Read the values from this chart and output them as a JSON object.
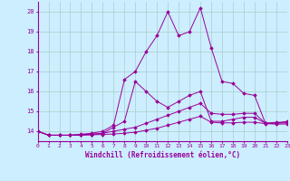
{
  "xlabel": "Windchill (Refroidissement éolien,°C)",
  "xlim": [
    0,
    23
  ],
  "ylim": [
    13.5,
    20.5
  ],
  "yticks": [
    14,
    15,
    16,
    17,
    18,
    19,
    20
  ],
  "xticks": [
    0,
    1,
    2,
    3,
    4,
    5,
    6,
    7,
    8,
    9,
    10,
    11,
    12,
    13,
    14,
    15,
    16,
    17,
    18,
    19,
    20,
    21,
    22,
    23
  ],
  "background_color": "#cceeff",
  "line_color": "#990099",
  "grid_color": "#aacccc",
  "lines": [
    {
      "x": [
        0,
        1,
        2,
        3,
        4,
        5,
        6,
        7,
        8,
        9,
        10,
        11,
        12,
        13,
        14,
        15,
        16,
        17,
        18,
        19,
        20,
        21,
        22,
        23
      ],
      "y": [
        14.0,
        13.8,
        13.8,
        13.8,
        13.85,
        13.9,
        14.0,
        14.3,
        16.6,
        17.0,
        18.0,
        18.8,
        20.0,
        18.8,
        19.0,
        20.2,
        18.2,
        16.5,
        16.4,
        15.9,
        15.8,
        14.4,
        14.4,
        14.5
      ]
    },
    {
      "x": [
        0,
        1,
        2,
        3,
        4,
        5,
        6,
        7,
        8,
        9,
        10,
        11,
        12,
        13,
        14,
        15,
        16,
        17,
        18,
        19,
        20,
        21,
        22,
        23
      ],
      "y": [
        14.0,
        13.8,
        13.8,
        13.8,
        13.82,
        13.84,
        13.9,
        14.2,
        14.5,
        16.5,
        16.0,
        15.5,
        15.2,
        15.5,
        15.8,
        16.0,
        14.5,
        14.5,
        14.6,
        14.7,
        14.7,
        14.4,
        14.45,
        14.45
      ]
    },
    {
      "x": [
        0,
        1,
        2,
        3,
        4,
        5,
        6,
        7,
        8,
        9,
        10,
        11,
        12,
        13,
        14,
        15,
        16,
        17,
        18,
        19,
        20,
        21,
        22,
        23
      ],
      "y": [
        14.0,
        13.8,
        13.8,
        13.8,
        13.82,
        13.85,
        13.9,
        14.0,
        14.1,
        14.2,
        14.4,
        14.6,
        14.8,
        15.0,
        15.2,
        15.4,
        14.9,
        14.85,
        14.85,
        14.9,
        14.9,
        14.4,
        14.4,
        14.42
      ]
    },
    {
      "x": [
        0,
        1,
        2,
        3,
        4,
        5,
        6,
        7,
        8,
        9,
        10,
        11,
        12,
        13,
        14,
        15,
        16,
        17,
        18,
        19,
        20,
        21,
        22,
        23
      ],
      "y": [
        14.0,
        13.8,
        13.8,
        13.8,
        13.8,
        13.82,
        13.84,
        13.86,
        13.9,
        13.95,
        14.05,
        14.15,
        14.3,
        14.45,
        14.6,
        14.75,
        14.45,
        14.42,
        14.42,
        14.45,
        14.45,
        14.38,
        14.36,
        14.36
      ]
    }
  ]
}
